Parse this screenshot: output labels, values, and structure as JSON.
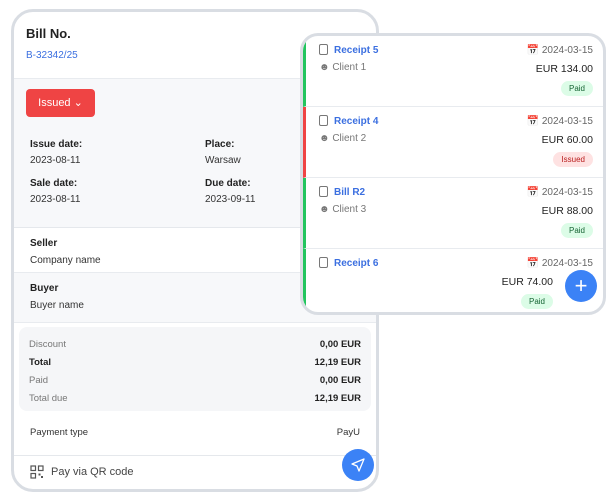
{
  "bill": {
    "title": "Bill No.",
    "number": "B-32342/25",
    "status": "Issued",
    "issue_date_label": "Issue date:",
    "issue_date": "2023-08-11",
    "place_label": "Place:",
    "place": "Warsaw",
    "sale_date_label": "Sale date:",
    "sale_date": "2023-08-11",
    "due_date_label": "Due date:",
    "due_date": "2023-09-11",
    "seller_label": "Seller",
    "seller": "Company name",
    "buyer_label": "Buyer",
    "buyer": "Buyer name",
    "summary": [
      {
        "label": "Discount",
        "value": "0,00 EUR"
      },
      {
        "label": "Total",
        "value": "12,19 EUR"
      },
      {
        "label": "Paid",
        "value": "0,00 EUR"
      },
      {
        "label": "Total due",
        "value": "12,19 EUR"
      }
    ],
    "payment_type_label": "Payment type",
    "payment_type": "PayU",
    "qr_label": "Pay via QR code"
  },
  "list": {
    "items": [
      {
        "name": "Receipt 5",
        "client": "Client 1",
        "date": "2024-03-15",
        "amount": "EUR 134.00",
        "status": "Paid"
      },
      {
        "name": "Receipt 4",
        "client": "Client 2",
        "date": "2024-03-15",
        "amount": "EUR 60.00",
        "status": "Issued"
      },
      {
        "name": "Bill R2",
        "client": "Client 3",
        "date": "2024-03-15",
        "amount": "EUR 88.00",
        "status": "Paid"
      },
      {
        "name": "Receipt 6",
        "client": "",
        "date": "2024-03-15",
        "amount": "EUR 74.00",
        "status": "Paid"
      }
    ]
  },
  "colors": {
    "paid": "#22c55e",
    "issued": "#ef4444",
    "accent": "#3b82f6"
  }
}
